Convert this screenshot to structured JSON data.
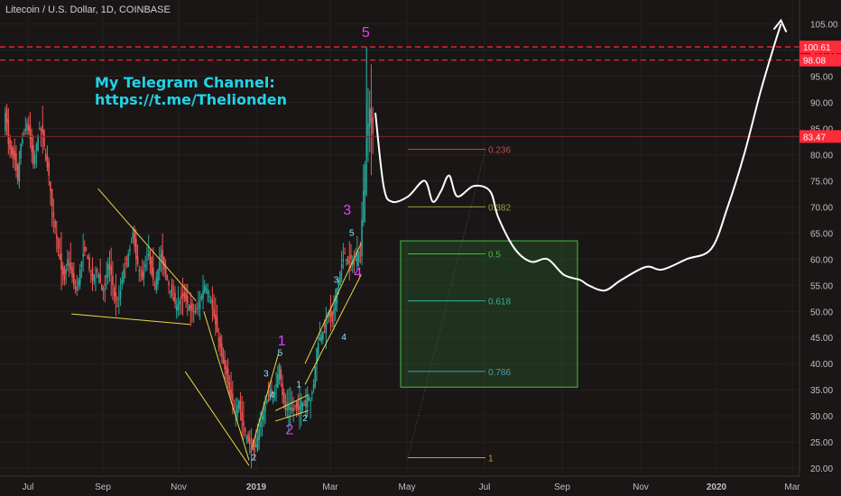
{
  "header": {
    "title": "Litecoin / U.S. Dollar, 1D, COINBASE"
  },
  "annotation": {
    "line1": "My Telegram Channel:",
    "line2": "https://t.me/Thelionden"
  },
  "colors": {
    "background": "#1a1616",
    "up": "#26a69a",
    "down": "#ef5350",
    "resistance": "#ff2a3a",
    "elliott_primary": "#e040fb",
    "elliott_minor": "#7fe8ff",
    "trendline": "#e6d84a",
    "projection": "#ffffff",
    "fib_zone": "#2e7d32"
  },
  "chart_data": {
    "type": "candlestick",
    "title": "Litecoin / U.S. Dollar, 1D, COINBASE",
    "xlabel": "",
    "ylabel": "",
    "x_ticks": [
      "Jul",
      "Sep",
      "Nov",
      "2019",
      "Mar",
      "May",
      "Jul",
      "Sep",
      "Nov",
      "2020",
      "Mar"
    ],
    "y_ticks": [
      20,
      25,
      30,
      35,
      40,
      45,
      50,
      55,
      60,
      65,
      70,
      75,
      80,
      85,
      90,
      95,
      100,
      105
    ],
    "ylim": [
      19.5,
      107
    ],
    "price_labels": [
      {
        "value": 100.61,
        "label": "100.61",
        "color": "#ff2a3a"
      },
      {
        "value": 98.08,
        "label": "98.08",
        "color": "#ff2a3a"
      },
      {
        "value": 83.47,
        "label": "83.47",
        "color": "#ff2a3a"
      }
    ],
    "resistance_levels": [
      100.61,
      98.08
    ],
    "current_price": 83.47,
    "fibonacci": [
      {
        "ratio": "0.236",
        "value": 81.0,
        "color": "#c44a4a"
      },
      {
        "ratio": "0.382",
        "value": 70.0,
        "color": "#9a9a3a"
      },
      {
        "ratio": "0.5",
        "value": 61.0,
        "color": "#3fbf3f"
      },
      {
        "ratio": "0.618",
        "value": 52.0,
        "color": "#33b39a"
      },
      {
        "ratio": "0.786",
        "value": 38.5,
        "color": "#4a9ab0"
      },
      {
        "ratio": "1",
        "value": 22.0,
        "color": "#c89a3a"
      }
    ],
    "fib_zone": {
      "x_from": "2019-05",
      "x_to": "2019-08",
      "y_from": 35.5,
      "y_to": 63.5
    },
    "price_path": [
      {
        "t": 0,
        "v": 86
      },
      {
        "t": 1,
        "v": 88
      },
      {
        "t": 2,
        "v": 86
      },
      {
        "t": 3,
        "v": 82
      },
      {
        "t": 5,
        "v": 80
      },
      {
        "t": 7,
        "v": 79
      },
      {
        "t": 9,
        "v": 75
      },
      {
        "t": 11,
        "v": 82
      },
      {
        "t": 13,
        "v": 84
      },
      {
        "t": 15,
        "v": 86
      },
      {
        "t": 17,
        "v": 83
      },
      {
        "t": 19,
        "v": 78
      },
      {
        "t": 21,
        "v": 82
      },
      {
        "t": 23,
        "v": 85
      },
      {
        "t": 25,
        "v": 84
      },
      {
        "t": 27,
        "v": 79
      },
      {
        "t": 29,
        "v": 76
      },
      {
        "t": 31,
        "v": 70
      },
      {
        "t": 33,
        "v": 66
      },
      {
        "t": 35,
        "v": 62
      },
      {
        "t": 37,
        "v": 58
      },
      {
        "t": 39,
        "v": 56
      },
      {
        "t": 41,
        "v": 60
      },
      {
        "t": 43,
        "v": 58
      },
      {
        "t": 45,
        "v": 55
      },
      {
        "t": 47,
        "v": 54
      },
      {
        "t": 49,
        "v": 58
      },
      {
        "t": 51,
        "v": 61
      },
      {
        "t": 53,
        "v": 62
      },
      {
        "t": 55,
        "v": 58
      },
      {
        "t": 57,
        "v": 56
      },
      {
        "t": 59,
        "v": 58
      },
      {
        "t": 61,
        "v": 57
      },
      {
        "t": 63,
        "v": 54
      },
      {
        "t": 65,
        "v": 55
      },
      {
        "t": 67,
        "v": 59
      },
      {
        "t": 69,
        "v": 57
      },
      {
        "t": 71,
        "v": 53
      },
      {
        "t": 73,
        "v": 51
      },
      {
        "t": 75,
        "v": 54
      },
      {
        "t": 77,
        "v": 58
      },
      {
        "t": 79,
        "v": 60
      },
      {
        "t": 81,
        "v": 62
      },
      {
        "t": 83,
        "v": 65
      },
      {
        "t": 85,
        "v": 60
      },
      {
        "t": 87,
        "v": 58
      },
      {
        "t": 89,
        "v": 56
      },
      {
        "t": 91,
        "v": 59
      },
      {
        "t": 93,
        "v": 61
      },
      {
        "t": 95,
        "v": 57
      },
      {
        "t": 97,
        "v": 55
      },
      {
        "t": 99,
        "v": 58
      },
      {
        "t": 101,
        "v": 61
      },
      {
        "t": 103,
        "v": 58
      },
      {
        "t": 105,
        "v": 56
      },
      {
        "t": 107,
        "v": 54
      },
      {
        "t": 109,
        "v": 52
      },
      {
        "t": 111,
        "v": 51
      },
      {
        "t": 113,
        "v": 52
      },
      {
        "t": 115,
        "v": 53
      },
      {
        "t": 117,
        "v": 52
      },
      {
        "t": 119,
        "v": 51
      },
      {
        "t": 121,
        "v": 50
      },
      {
        "t": 123,
        "v": 50
      },
      {
        "t": 125,
        "v": 51
      },
      {
        "t": 127,
        "v": 53
      },
      {
        "t": 129,
        "v": 55
      },
      {
        "t": 131,
        "v": 54
      },
      {
        "t": 133,
        "v": 52
      },
      {
        "t": 135,
        "v": 49
      },
      {
        "t": 137,
        "v": 46
      },
      {
        "t": 139,
        "v": 43
      },
      {
        "t": 141,
        "v": 40
      },
      {
        "t": 143,
        "v": 38
      },
      {
        "t": 145,
        "v": 34
      },
      {
        "t": 147,
        "v": 33
      },
      {
        "t": 149,
        "v": 31
      },
      {
        "t": 151,
        "v": 33
      },
      {
        "t": 153,
        "v": 29
      },
      {
        "t": 155,
        "v": 27
      },
      {
        "t": 157,
        "v": 25
      },
      {
        "t": 159,
        "v": 24
      },
      {
        "t": 161,
        "v": 23
      },
      {
        "t": 163,
        "v": 26
      },
      {
        "t": 165,
        "v": 29
      },
      {
        "t": 167,
        "v": 31
      },
      {
        "t": 169,
        "v": 33
      },
      {
        "t": 171,
        "v": 35
      },
      {
        "t": 173,
        "v": 33
      },
      {
        "t": 175,
        "v": 36
      },
      {
        "t": 177,
        "v": 40
      },
      {
        "t": 179,
        "v": 34
      },
      {
        "t": 181,
        "v": 31
      },
      {
        "t": 183,
        "v": 32
      },
      {
        "t": 185,
        "v": 31
      },
      {
        "t": 187,
        "v": 32
      },
      {
        "t": 189,
        "v": 31
      },
      {
        "t": 191,
        "v": 33
      },
      {
        "t": 193,
        "v": 32
      },
      {
        "t": 195,
        "v": 34
      },
      {
        "t": 197,
        "v": 33
      },
      {
        "t": 199,
        "v": 36
      },
      {
        "t": 201,
        "v": 43
      },
      {
        "t": 203,
        "v": 45
      },
      {
        "t": 205,
        "v": 46
      },
      {
        "t": 207,
        "v": 48
      },
      {
        "t": 209,
        "v": 50
      },
      {
        "t": 211,
        "v": 48
      },
      {
        "t": 213,
        "v": 53
      },
      {
        "t": 215,
        "v": 56
      },
      {
        "t": 217,
        "v": 59
      },
      {
        "t": 219,
        "v": 61
      },
      {
        "t": 221,
        "v": 59
      },
      {
        "t": 223,
        "v": 60
      },
      {
        "t": 225,
        "v": 59
      },
      {
        "t": 227,
        "v": 61
      },
      {
        "t": 229,
        "v": 62
      },
      {
        "t": 231,
        "v": 73
      },
      {
        "t": 233,
        "v": 83
      },
      {
        "t": 235,
        "v": 89
      },
      {
        "t": 236,
        "v": 86
      },
      {
        "t": 237,
        "v": 84
      }
    ],
    "projection_path": [
      [
        0,
        88
      ],
      [
        2,
        74
      ],
      [
        4,
        71
      ],
      [
        8,
        72
      ],
      [
        12,
        75
      ],
      [
        14,
        71
      ],
      [
        16,
        73
      ],
      [
        18,
        76
      ],
      [
        20,
        72
      ],
      [
        24,
        74
      ],
      [
        28,
        73
      ],
      [
        30,
        68
      ],
      [
        34,
        62
      ],
      [
        38,
        59.5
      ],
      [
        42,
        60
      ],
      [
        46,
        57
      ],
      [
        50,
        56
      ],
      [
        52,
        55
      ],
      [
        56,
        54
      ],
      [
        60,
        56
      ],
      [
        66,
        58.5
      ],
      [
        70,
        58
      ],
      [
        76,
        60
      ],
      [
        82,
        62
      ],
      [
        86,
        70
      ],
      [
        90,
        80
      ],
      [
        94,
        92
      ],
      [
        97,
        100
      ],
      [
        99,
        105
      ]
    ],
    "elliott_primary": [
      {
        "label": "1",
        "t": 178,
        "v": 43.5
      },
      {
        "label": "2",
        "t": 183,
        "v": 26.5
      },
      {
        "label": "3",
        "t": 220,
        "v": 68.5
      },
      {
        "label": "4",
        "t": 227,
        "v": 56.5
      },
      {
        "label": "5",
        "t": 232,
        "v": 102.5
      }
    ],
    "elliott_minor": [
      {
        "label": "2",
        "t": 160,
        "v": 21.5
      },
      {
        "label": "3",
        "t": 168,
        "v": 37.5
      },
      {
        "label": "4",
        "t": 172,
        "v": 33.5
      },
      {
        "label": "5",
        "t": 177,
        "v": 41.5
      },
      {
        "label": "1",
        "t": 189,
        "v": 35.5
      },
      {
        "label": "2",
        "t": 193,
        "v": 29.0
      },
      {
        "label": "3",
        "t": 213,
        "v": 55.5
      },
      {
        "label": "4",
        "t": 218,
        "v": 44.5
      },
      {
        "label": "5",
        "t": 223,
        "v": 64.5
      }
    ],
    "trendlines": [
      {
        "from": [
          60,
          73.5
        ],
        "to": [
          123,
          52
        ]
      },
      {
        "from": [
          43,
          49.5
        ],
        "to": [
          119,
          47.5
        ]
      },
      {
        "from": [
          116,
          38.5
        ],
        "to": [
          157,
          20.5
        ]
      },
      {
        "from": [
          128,
          50
        ],
        "to": [
          157,
          21.5
        ]
      },
      {
        "from": [
          159,
          24
        ],
        "to": [
          176,
          42
        ]
      },
      {
        "from": [
          174,
          29
        ],
        "to": [
          195,
          31
        ]
      },
      {
        "from": [
          174,
          31
        ],
        "to": [
          195,
          34
        ]
      },
      {
        "from": [
          193,
          40
        ],
        "to": [
          229,
          63
        ]
      },
      {
        "from": [
          193,
          36
        ],
        "to": [
          229,
          57
        ]
      }
    ]
  }
}
